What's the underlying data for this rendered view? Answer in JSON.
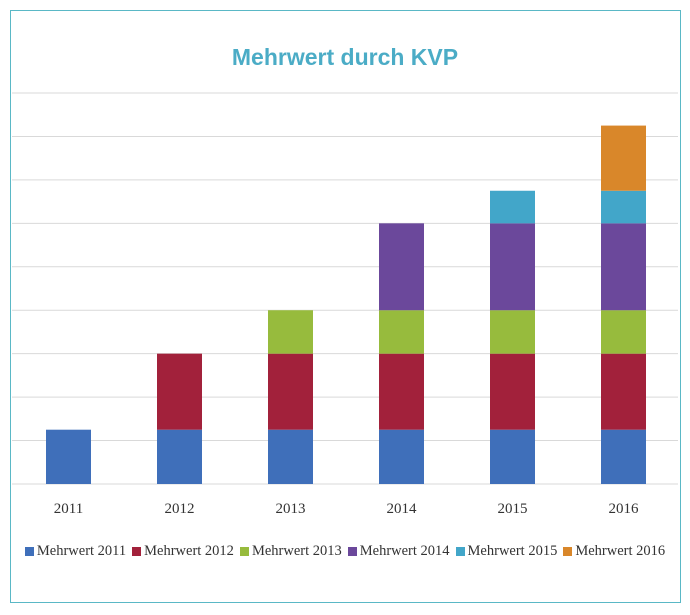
{
  "chart_data": {
    "type": "bar",
    "stacked": true,
    "title": "Mehrwert durch KVP",
    "categories": [
      "2011",
      "2012",
      "2013",
      "2014",
      "2015",
      "2016"
    ],
    "series": [
      {
        "name": "Mehrwert 2011",
        "color": "#3f6fba",
        "values": [
          1.25,
          1.25,
          1.25,
          1.25,
          1.25,
          1.25
        ]
      },
      {
        "name": "Mehrwert 2012",
        "color": "#a2213b",
        "values": [
          0,
          1.75,
          1.75,
          1.75,
          1.75,
          1.75
        ]
      },
      {
        "name": "Mehrwert 2013",
        "color": "#97bb3d",
        "values": [
          0,
          0,
          1,
          1,
          1,
          1
        ]
      },
      {
        "name": "Mehrwert 2014",
        "color": "#6b489b",
        "values": [
          0,
          0,
          0,
          2,
          2,
          2
        ]
      },
      {
        "name": "Mehrwert 2015",
        "color": "#42a6c9",
        "values": [
          0,
          0,
          0,
          0,
          0.75,
          0.75
        ]
      },
      {
        "name": "Mehrwert 2016",
        "color": "#d9872a",
        "values": [
          0,
          0,
          0,
          0,
          0,
          1.5
        ]
      }
    ],
    "ylim": [
      0,
      9
    ],
    "y_gridlines": 9,
    "y_tick_labels_shown": false,
    "grid": true,
    "legend_position": "bottom"
  }
}
